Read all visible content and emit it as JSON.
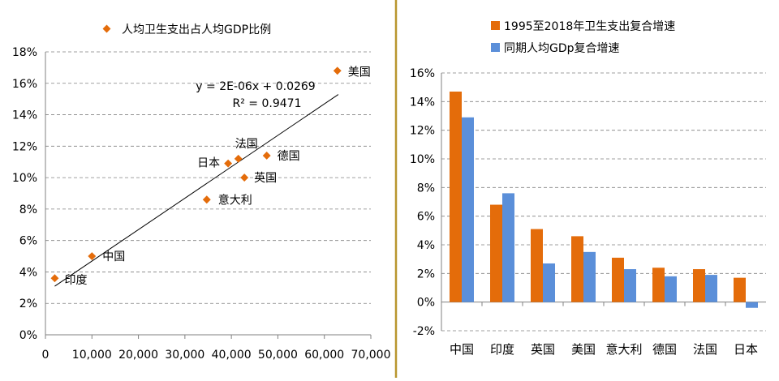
{
  "colors": {
    "orange": "#E46C0A",
    "blue": "#5B8FD9",
    "divider": "#B8962E",
    "grid": "#808080",
    "axis": "#808080",
    "trend": "#000000"
  },
  "chart_data": [
    {
      "type": "scatter",
      "legend": "人均卫生支出占人均GDP比例",
      "legend_position": "top",
      "xlim": [
        0,
        70000
      ],
      "ylim": [
        0,
        0.18
      ],
      "x_ticks": [
        0,
        10000,
        20000,
        30000,
        40000,
        50000,
        60000,
        70000
      ],
      "x_tick_labels": [
        "0",
        "10,000",
        "20,000",
        "30,000",
        "40,000",
        "50,000",
        "60,000",
        "70,000"
      ],
      "y_ticks": [
        0,
        0.02,
        0.04,
        0.06,
        0.08,
        0.1,
        0.12,
        0.14,
        0.16,
        0.18
      ],
      "y_tick_labels": [
        "0%",
        "2%",
        "4%",
        "6%",
        "8%",
        "10%",
        "12%",
        "14%",
        "16%",
        "18%"
      ],
      "grid": "horizontal dashed",
      "points": [
        {
          "label": "印度",
          "x": 2000,
          "y": 0.036
        },
        {
          "label": "中国",
          "x": 10000,
          "y": 0.05
        },
        {
          "label": "意大利",
          "x": 34700,
          "y": 0.086
        },
        {
          "label": "日本",
          "x": 39300,
          "y": 0.109
        },
        {
          "label": "法国",
          "x": 41500,
          "y": 0.112
        },
        {
          "label": "英国",
          "x": 42800,
          "y": 0.1
        },
        {
          "label": "德国",
          "x": 47600,
          "y": 0.114
        },
        {
          "label": "美国",
          "x": 62800,
          "y": 0.168
        }
      ],
      "trendline": {
        "x_range": [
          2000,
          63000
        ],
        "equation": "y = 2E-06x + 0.0269",
        "r_squared": "R² = 0.9471"
      }
    },
    {
      "type": "bar",
      "categories": [
        "中国",
        "印度",
        "英国",
        "美国",
        "意大利",
        "德国",
        "法国",
        "日本"
      ],
      "series": [
        {
          "name": "1995至2018年卫生支出复合增速",
          "values": [
            0.147,
            0.068,
            0.051,
            0.046,
            0.031,
            0.024,
            0.023,
            0.017
          ]
        },
        {
          "name": "同期人均GDp复合增速",
          "values": [
            0.129,
            0.076,
            0.027,
            0.035,
            0.023,
            0.018,
            0.019,
            -0.004
          ]
        }
      ],
      "ylim": [
        -0.02,
        0.16
      ],
      "y_ticks": [
        -0.02,
        0,
        0.02,
        0.04,
        0.06,
        0.08,
        0.1,
        0.12,
        0.14,
        0.16
      ],
      "y_tick_labels": [
        "-2%",
        "0%",
        "2%",
        "4%",
        "6%",
        "8%",
        "10%",
        "12%",
        "14%",
        "16%"
      ],
      "grid": "horizontal dashed",
      "legend_position": "top-left"
    }
  ]
}
